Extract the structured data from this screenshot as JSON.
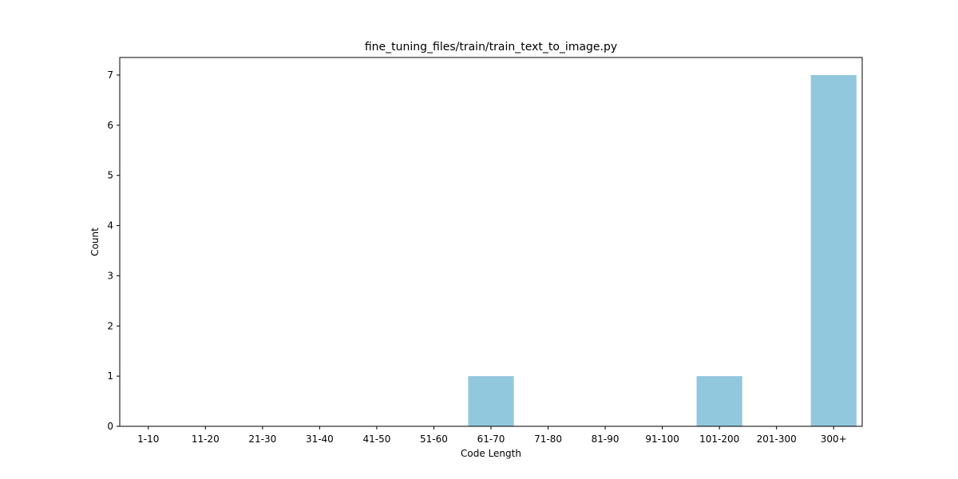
{
  "chart_data": {
    "type": "bar",
    "title": "fine_tuning_files/train/train_text_to_image.py",
    "xlabel": "Code Length",
    "ylabel": "Count",
    "categories": [
      "1-10",
      "11-20",
      "21-30",
      "31-40",
      "41-50",
      "51-60",
      "61-70",
      "71-80",
      "81-90",
      "91-100",
      "101-200",
      "201-300",
      "300+"
    ],
    "values": [
      0,
      0,
      0,
      0,
      0,
      0,
      1,
      0,
      0,
      0,
      1,
      0,
      7
    ],
    "ylim": [
      0,
      7.35
    ],
    "yticks": [
      0,
      1,
      2,
      3,
      4,
      5,
      6,
      7
    ],
    "grid": false,
    "bar_color": "#92c8dd"
  }
}
